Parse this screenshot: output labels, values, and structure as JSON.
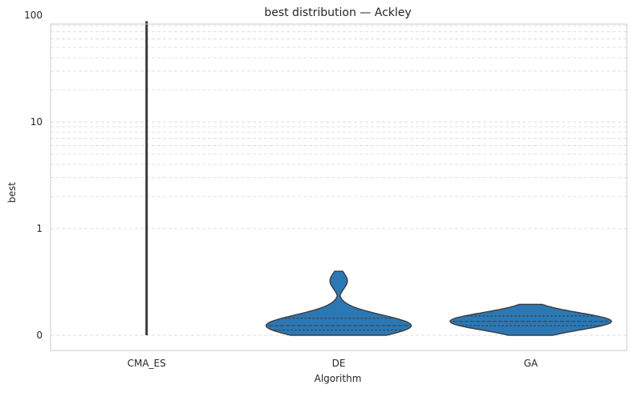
{
  "chart_data": {
    "type": "violin",
    "title": "best distribution — Ackley",
    "xlabel": "Algorithm",
    "ylabel": "best",
    "yscale": "symlog",
    "ylim": [
      0,
      130
    ],
    "yticks": [
      {
        "value": 0,
        "label": "0"
      },
      {
        "value": 1,
        "label": "1"
      },
      {
        "value": 10,
        "label": "10"
      },
      {
        "value": 100,
        "label": "100"
      }
    ],
    "grid": true,
    "categories": [
      "CMA_ES",
      "DE",
      "GA"
    ],
    "series": [
      {
        "category": "CMA_ES",
        "min": 0,
        "max": 88,
        "shape": "line"
      },
      {
        "category": "DE",
        "min": 0.0,
        "max": 0.6,
        "q1": 0.05,
        "median": 0.09,
        "q3": 0.16
      },
      {
        "category": "GA",
        "min": 0.0,
        "max": 0.29,
        "q1": 0.09,
        "median": 0.13,
        "q3": 0.18
      }
    ],
    "color": "#2b78b5"
  }
}
